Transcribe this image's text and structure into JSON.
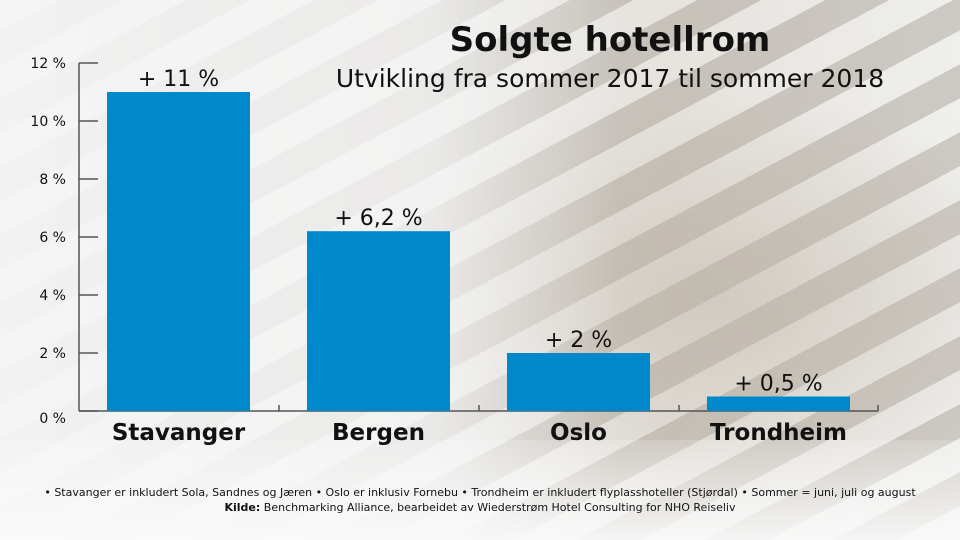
{
  "chart_data": {
    "type": "bar",
    "title": "Solgte hotellrom",
    "subtitle": "Utvikling fra sommer 2017 til sommer 2018",
    "categories": [
      "Stavanger",
      "Bergen",
      "Oslo",
      "Trondheim"
    ],
    "values": [
      11,
      6.2,
      2,
      0.5
    ],
    "data_labels": [
      "+ 11 %",
      "+ 6,2 %",
      "+ 2 %",
      "+ 0,5 %"
    ],
    "yticks": [
      "0 %",
      "2 %",
      "4 %",
      "6 %",
      "8 %",
      "10 %",
      "12 %"
    ],
    "ylim": [
      0,
      12
    ],
    "grid": false,
    "bar_color": "#0088cc"
  },
  "footnote": "• Stavanger er inkludert Sola, Sandnes og Jæren • Oslo er inklusiv Fornebu • Trondheim er inkludert flyplasshoteller (Stjørdal) • Sommer = juni, juli og august",
  "source_label": "Kilde:",
  "source_text": " Benchmarking Alliance, bearbeidet av Wiederstrøm Hotel Consulting for NHO Reiseliv"
}
